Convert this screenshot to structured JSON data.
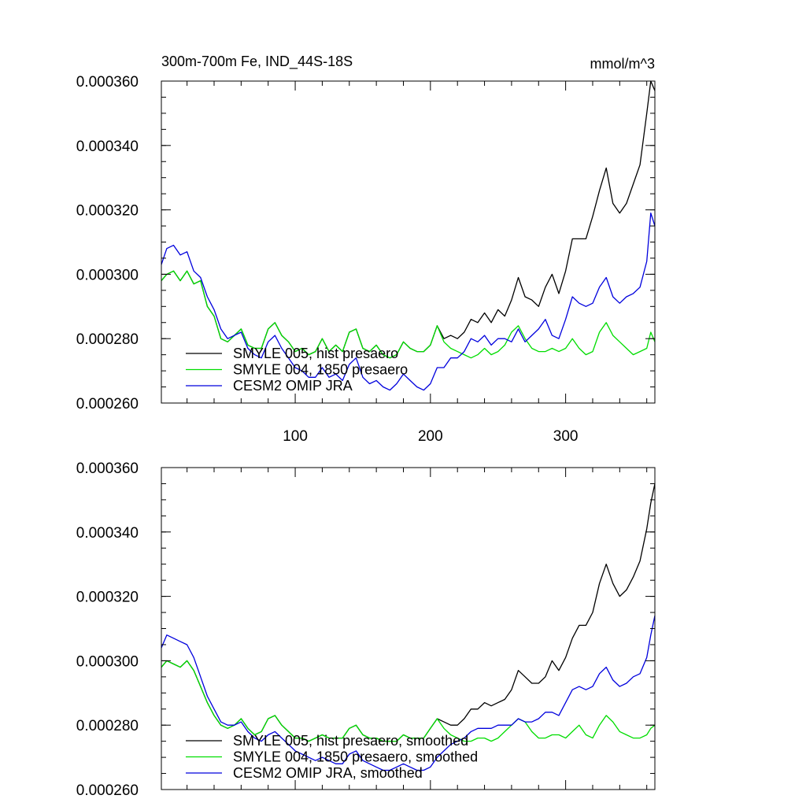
{
  "chart_data": [
    {
      "type": "line",
      "title": "300m-700m Fe, IND_44S-18S",
      "units": "mmol/m^3",
      "xlabel": "",
      "ylabel": "",
      "xlim": [
        1,
        366
      ],
      "ylim": [
        0.00026,
        0.00036
      ],
      "x_ticks": [
        100,
        200,
        300
      ],
      "x_tick_labels": [
        "100",
        "200",
        "300"
      ],
      "y_ticks": [
        0.00026,
        0.00028,
        0.0003,
        0.00032,
        0.00034,
        0.00036
      ],
      "y_tick_labels": [
        "0.000260",
        "0.000280",
        "0.000300",
        "0.000320",
        "0.000340",
        "0.000360"
      ],
      "legend_position": "bottom-left",
      "series": [
        {
          "name": "SMYLE 005, hist presaero",
          "color": "#000000",
          "x": [
            1,
            5,
            10,
            15,
            20,
            25,
            30,
            35,
            40,
            45,
            50,
            55,
            60,
            65,
            70,
            75,
            80,
            85,
            90,
            95,
            100,
            105,
            110,
            115,
            120,
            125,
            130,
            135,
            140,
            145,
            150,
            155,
            160,
            165,
            170,
            175,
            180,
            185,
            190,
            195,
            200,
            205,
            210,
            215,
            220,
            225,
            230,
            235,
            240,
            245,
            250,
            255,
            260,
            265,
            270,
            275,
            280,
            285,
            290,
            295,
            300,
            305,
            310,
            315,
            320,
            325,
            330,
            335,
            340,
            345,
            350,
            355,
            360,
            363,
            366
          ],
          "values": [
            0.000298,
            0.0003,
            0.000301,
            0.000298,
            0.000301,
            0.000297,
            0.000298,
            0.00029,
            0.000287,
            0.00028,
            0.000279,
            0.000281,
            0.000283,
            0.000278,
            0.000277,
            0.000277,
            0.000283,
            0.000285,
            0.000281,
            0.000279,
            0.000276,
            0.000277,
            0.000275,
            0.000276,
            0.00028,
            0.000276,
            0.000278,
            0.000276,
            0.000282,
            0.000283,
            0.000277,
            0.000276,
            0.000278,
            0.000275,
            0.000274,
            0.000275,
            0.000279,
            0.000277,
            0.000276,
            0.000276,
            0.000278,
            0.000284,
            0.00028,
            0.000281,
            0.00028,
            0.000282,
            0.000286,
            0.000285,
            0.000288,
            0.000285,
            0.000289,
            0.000287,
            0.000292,
            0.000299,
            0.000293,
            0.000292,
            0.00029,
            0.000296,
            0.0003,
            0.000294,
            0.000301,
            0.000311,
            0.000311,
            0.000311,
            0.000318,
            0.000326,
            0.000333,
            0.000322,
            0.000319,
            0.000322,
            0.000328,
            0.000334,
            0.00035,
            0.00036,
            0.000357
          ]
        },
        {
          "name": "SMYLE 004, 1850 presaero",
          "color": "#00dd00",
          "x": [
            1,
            5,
            10,
            15,
            20,
            25,
            30,
            35,
            40,
            45,
            50,
            55,
            60,
            65,
            70,
            75,
            80,
            85,
            90,
            95,
            100,
            105,
            110,
            115,
            120,
            125,
            130,
            135,
            140,
            145,
            150,
            155,
            160,
            165,
            170,
            175,
            180,
            185,
            190,
            195,
            200,
            205,
            210,
            215,
            220,
            225,
            230,
            235,
            240,
            245,
            250,
            255,
            260,
            265,
            270,
            275,
            280,
            285,
            290,
            295,
            300,
            305,
            310,
            315,
            320,
            325,
            330,
            335,
            340,
            345,
            350,
            355,
            360,
            363,
            366
          ],
          "values": [
            0.000298,
            0.0003,
            0.000301,
            0.000298,
            0.000301,
            0.000297,
            0.000298,
            0.00029,
            0.000287,
            0.00028,
            0.000279,
            0.000281,
            0.000283,
            0.000278,
            0.000277,
            0.000277,
            0.000283,
            0.000285,
            0.000281,
            0.000279,
            0.000276,
            0.000277,
            0.000275,
            0.000276,
            0.00028,
            0.000276,
            0.000278,
            0.000276,
            0.000282,
            0.000283,
            0.000277,
            0.000276,
            0.000278,
            0.000275,
            0.000274,
            0.000275,
            0.000279,
            0.000277,
            0.000276,
            0.000276,
            0.000278,
            0.000284,
            0.000279,
            0.000277,
            0.000276,
            0.000275,
            0.000274,
            0.000275,
            0.000277,
            0.000275,
            0.000276,
            0.000278,
            0.000282,
            0.000284,
            0.00028,
            0.000277,
            0.000276,
            0.000276,
            0.000277,
            0.000276,
            0.000277,
            0.00028,
            0.000277,
            0.000275,
            0.000276,
            0.000282,
            0.000285,
            0.000281,
            0.000279,
            0.000277,
            0.000275,
            0.000276,
            0.000277,
            0.000282,
            0.000279
          ]
        },
        {
          "name": "CESM2 OMIP JRA",
          "color": "#0000dd",
          "x": [
            1,
            5,
            10,
            15,
            20,
            25,
            30,
            35,
            40,
            45,
            50,
            55,
            60,
            65,
            70,
            75,
            80,
            85,
            90,
            95,
            100,
            105,
            110,
            115,
            120,
            125,
            130,
            135,
            140,
            145,
            150,
            155,
            160,
            165,
            170,
            175,
            180,
            185,
            190,
            195,
            200,
            205,
            210,
            215,
            220,
            225,
            230,
            235,
            240,
            245,
            250,
            255,
            260,
            265,
            270,
            275,
            280,
            285,
            290,
            295,
            300,
            305,
            310,
            315,
            320,
            325,
            330,
            335,
            340,
            345,
            350,
            355,
            360,
            363,
            366
          ],
          "values": [
            0.000303,
            0.000308,
            0.000309,
            0.000306,
            0.000307,
            0.000301,
            0.000299,
            0.000293,
            0.000289,
            0.000283,
            0.00028,
            0.000281,
            0.000282,
            0.000277,
            0.000275,
            0.000274,
            0.000279,
            0.000281,
            0.000277,
            0.000274,
            0.000271,
            0.00027,
            0.000268,
            0.000268,
            0.000271,
            0.000268,
            0.000269,
            0.000267,
            0.000272,
            0.000274,
            0.000268,
            0.000266,
            0.000267,
            0.000265,
            0.000264,
            0.000266,
            0.000269,
            0.000267,
            0.000265,
            0.000264,
            0.000266,
            0.000271,
            0.000271,
            0.000274,
            0.000274,
            0.000276,
            0.00028,
            0.000279,
            0.000281,
            0.000278,
            0.00028,
            0.00028,
            0.000279,
            0.000283,
            0.000279,
            0.000281,
            0.000283,
            0.000286,
            0.000281,
            0.00028,
            0.000286,
            0.000293,
            0.000291,
            0.00029,
            0.000291,
            0.000296,
            0.000299,
            0.000293,
            0.000291,
            0.000293,
            0.000294,
            0.000296,
            0.000304,
            0.000319,
            0.000315
          ]
        }
      ]
    },
    {
      "type": "line",
      "title": "",
      "units": "",
      "xlabel": "",
      "ylabel": "",
      "xlim": [
        1,
        366
      ],
      "ylim": [
        0.00026,
        0.00036
      ],
      "x_ticks": [
        100,
        200,
        300
      ],
      "x_tick_labels": [],
      "y_ticks": [
        0.00026,
        0.00028,
        0.0003,
        0.00032,
        0.00034,
        0.00036
      ],
      "y_tick_labels": [
        "0.000260",
        "0.000280",
        "0.000300",
        "0.000320",
        "0.000340",
        "0.000360"
      ],
      "legend_position": "bottom-left",
      "series": [
        {
          "name": "SMYLE 005, hist presaero, smoothed",
          "color": "#000000",
          "x": [
            1,
            5,
            10,
            15,
            20,
            25,
            30,
            35,
            40,
            45,
            50,
            55,
            60,
            65,
            70,
            75,
            80,
            85,
            90,
            95,
            100,
            105,
            110,
            115,
            120,
            125,
            130,
            135,
            140,
            145,
            150,
            155,
            160,
            165,
            170,
            175,
            180,
            185,
            190,
            195,
            200,
            205,
            210,
            215,
            220,
            225,
            230,
            235,
            240,
            245,
            250,
            255,
            260,
            265,
            270,
            275,
            280,
            285,
            290,
            295,
            300,
            305,
            310,
            315,
            320,
            325,
            330,
            335,
            340,
            345,
            350,
            355,
            360,
            363,
            366
          ],
          "values": [
            0.000298,
            0.0003,
            0.000299,
            0.000298,
            0.0003,
            0.000297,
            0.000292,
            0.000287,
            0.000283,
            0.00028,
            0.000279,
            0.00028,
            0.000282,
            0.000279,
            0.000277,
            0.000278,
            0.000282,
            0.000283,
            0.00028,
            0.000278,
            0.000276,
            0.000276,
            0.000275,
            0.000276,
            0.000277,
            0.000276,
            0.000276,
            0.000276,
            0.000279,
            0.00028,
            0.000277,
            0.000276,
            0.000276,
            0.000275,
            0.000275,
            0.000275,
            0.000277,
            0.000276,
            0.000276,
            0.000276,
            0.000279,
            0.000282,
            0.000281,
            0.00028,
            0.00028,
            0.000282,
            0.000285,
            0.000285,
            0.000287,
            0.000286,
            0.000287,
            0.000288,
            0.000291,
            0.000297,
            0.000295,
            0.000293,
            0.000293,
            0.000295,
            0.0003,
            0.000297,
            0.000301,
            0.000307,
            0.000311,
            0.000311,
            0.000315,
            0.000324,
            0.00033,
            0.000324,
            0.00032,
            0.000322,
            0.000326,
            0.000331,
            0.000341,
            0.000349,
            0.000355
          ]
        },
        {
          "name": "SMYLE 004, 1850 presaero, smoothed",
          "color": "#00dd00",
          "x": [
            1,
            5,
            10,
            15,
            20,
            25,
            30,
            35,
            40,
            45,
            50,
            55,
            60,
            65,
            70,
            75,
            80,
            85,
            90,
            95,
            100,
            105,
            110,
            115,
            120,
            125,
            130,
            135,
            140,
            145,
            150,
            155,
            160,
            165,
            170,
            175,
            180,
            185,
            190,
            195,
            200,
            205,
            210,
            215,
            220,
            225,
            230,
            235,
            240,
            245,
            250,
            255,
            260,
            265,
            270,
            275,
            280,
            285,
            290,
            295,
            300,
            305,
            310,
            315,
            320,
            325,
            330,
            335,
            340,
            345,
            350,
            355,
            360,
            363,
            366
          ],
          "values": [
            0.000298,
            0.0003,
            0.000299,
            0.000298,
            0.0003,
            0.000297,
            0.000292,
            0.000287,
            0.000283,
            0.00028,
            0.000279,
            0.00028,
            0.000282,
            0.000279,
            0.000277,
            0.000278,
            0.000282,
            0.000283,
            0.00028,
            0.000278,
            0.000276,
            0.000276,
            0.000275,
            0.000276,
            0.000277,
            0.000276,
            0.000276,
            0.000276,
            0.000279,
            0.00028,
            0.000277,
            0.000276,
            0.000276,
            0.000275,
            0.000275,
            0.000275,
            0.000277,
            0.000276,
            0.000276,
            0.000276,
            0.000279,
            0.000282,
            0.000279,
            0.000277,
            0.000276,
            0.000275,
            0.000275,
            0.000276,
            0.000276,
            0.000275,
            0.000276,
            0.000278,
            0.00028,
            0.000282,
            0.000281,
            0.000278,
            0.000276,
            0.000276,
            0.000277,
            0.000277,
            0.000276,
            0.000278,
            0.00028,
            0.000277,
            0.000276,
            0.00028,
            0.000283,
            0.000281,
            0.000278,
            0.000277,
            0.000276,
            0.000276,
            0.000277,
            0.000279,
            0.00028
          ]
        },
        {
          "name": "CESM2 OMIP JRA, smoothed",
          "color": "#0000dd",
          "x": [
            1,
            5,
            10,
            15,
            20,
            25,
            30,
            35,
            40,
            45,
            50,
            55,
            60,
            65,
            70,
            75,
            80,
            85,
            90,
            95,
            100,
            105,
            110,
            115,
            120,
            125,
            130,
            135,
            140,
            145,
            150,
            155,
            160,
            165,
            170,
            175,
            180,
            185,
            190,
            195,
            200,
            205,
            210,
            215,
            220,
            225,
            230,
            235,
            240,
            245,
            250,
            255,
            260,
            265,
            270,
            275,
            280,
            285,
            290,
            295,
            300,
            305,
            310,
            315,
            320,
            325,
            330,
            335,
            340,
            345,
            350,
            355,
            360,
            363,
            366
          ],
          "values": [
            0.000304,
            0.000308,
            0.000307,
            0.000306,
            0.000305,
            0.000301,
            0.000295,
            0.000289,
            0.000285,
            0.000281,
            0.00028,
            0.00028,
            0.000281,
            0.000278,
            0.000276,
            0.000275,
            0.000277,
            0.000278,
            0.000276,
            0.000274,
            0.000272,
            0.000271,
            0.00027,
            0.000269,
            0.00027,
            0.000269,
            0.000268,
            0.000268,
            0.000271,
            0.000272,
            0.000269,
            0.000268,
            0.000267,
            0.000266,
            0.000266,
            0.000267,
            0.000268,
            0.000267,
            0.000266,
            0.000266,
            0.000267,
            0.00027,
            0.000272,
            0.000274,
            0.000275,
            0.000276,
            0.000278,
            0.000279,
            0.000279,
            0.000279,
            0.00028,
            0.00028,
            0.00028,
            0.000282,
            0.000281,
            0.000281,
            0.000282,
            0.000284,
            0.000284,
            0.000283,
            0.000287,
            0.000291,
            0.000292,
            0.000291,
            0.000292,
            0.000296,
            0.000298,
            0.000294,
            0.000292,
            0.000293,
            0.000295,
            0.000296,
            0.000301,
            0.000308,
            0.000314
          ]
        }
      ]
    }
  ]
}
